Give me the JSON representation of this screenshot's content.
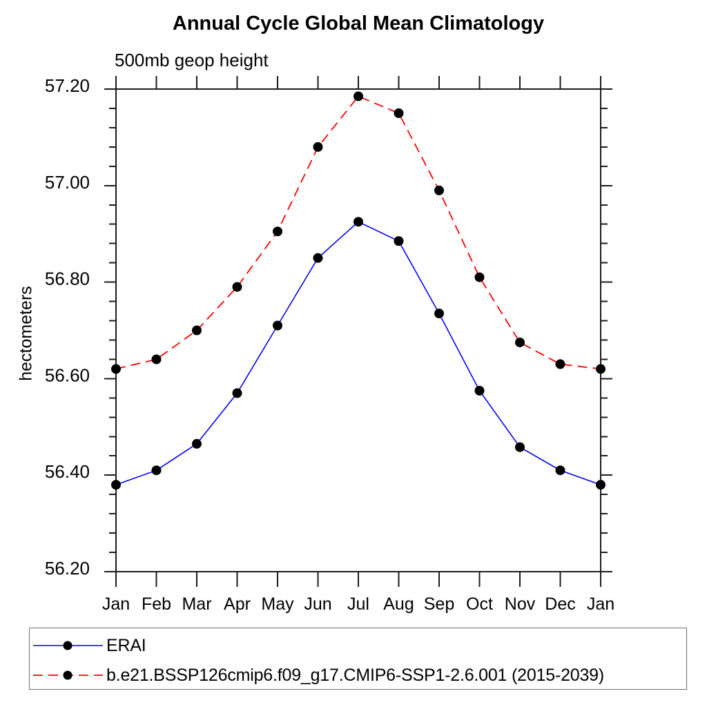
{
  "chart_data": {
    "type": "line",
    "title": "Annual Cycle Global Mean Climatology",
    "subtitle": "500mb geop height",
    "ylabel": "hectometers",
    "xlabel": "",
    "categories": [
      "Jan",
      "Feb",
      "Mar",
      "Apr",
      "May",
      "Jun",
      "Jul",
      "Aug",
      "Sep",
      "Oct",
      "Nov",
      "Dec",
      "Jan"
    ],
    "ylim": [
      56.2,
      57.2
    ],
    "y_ticks": [
      56.2,
      56.4,
      56.6,
      56.8,
      57.0,
      57.2
    ],
    "y_tick_labels": [
      "56.20",
      "56.40",
      "56.60",
      "56.80",
      "57.00",
      "57.20"
    ],
    "y_minor_step": 0.04,
    "grid": false,
    "legend_position": "bottom",
    "series": [
      {
        "name": "ERAI",
        "color": "#0000ff",
        "style": "solid",
        "marker": "circle",
        "marker_color": "#000000",
        "values": [
          56.38,
          56.41,
          56.465,
          56.57,
          56.71,
          56.85,
          56.925,
          56.885,
          56.735,
          56.575,
          56.458,
          56.41,
          56.38
        ]
      },
      {
        "name": "b.e21.BSSP126cmip6.f09_g17.CMIP6-SSP1-2.6.001 (2015-2039)",
        "color": "#ff0000",
        "style": "dashed",
        "marker": "circle",
        "marker_color": "#000000",
        "values": [
          56.62,
          56.64,
          56.7,
          56.79,
          56.905,
          57.08,
          57.185,
          57.15,
          56.99,
          56.81,
          56.675,
          56.63,
          56.62
        ]
      }
    ],
    "axis_color": "#1a1a1a"
  }
}
